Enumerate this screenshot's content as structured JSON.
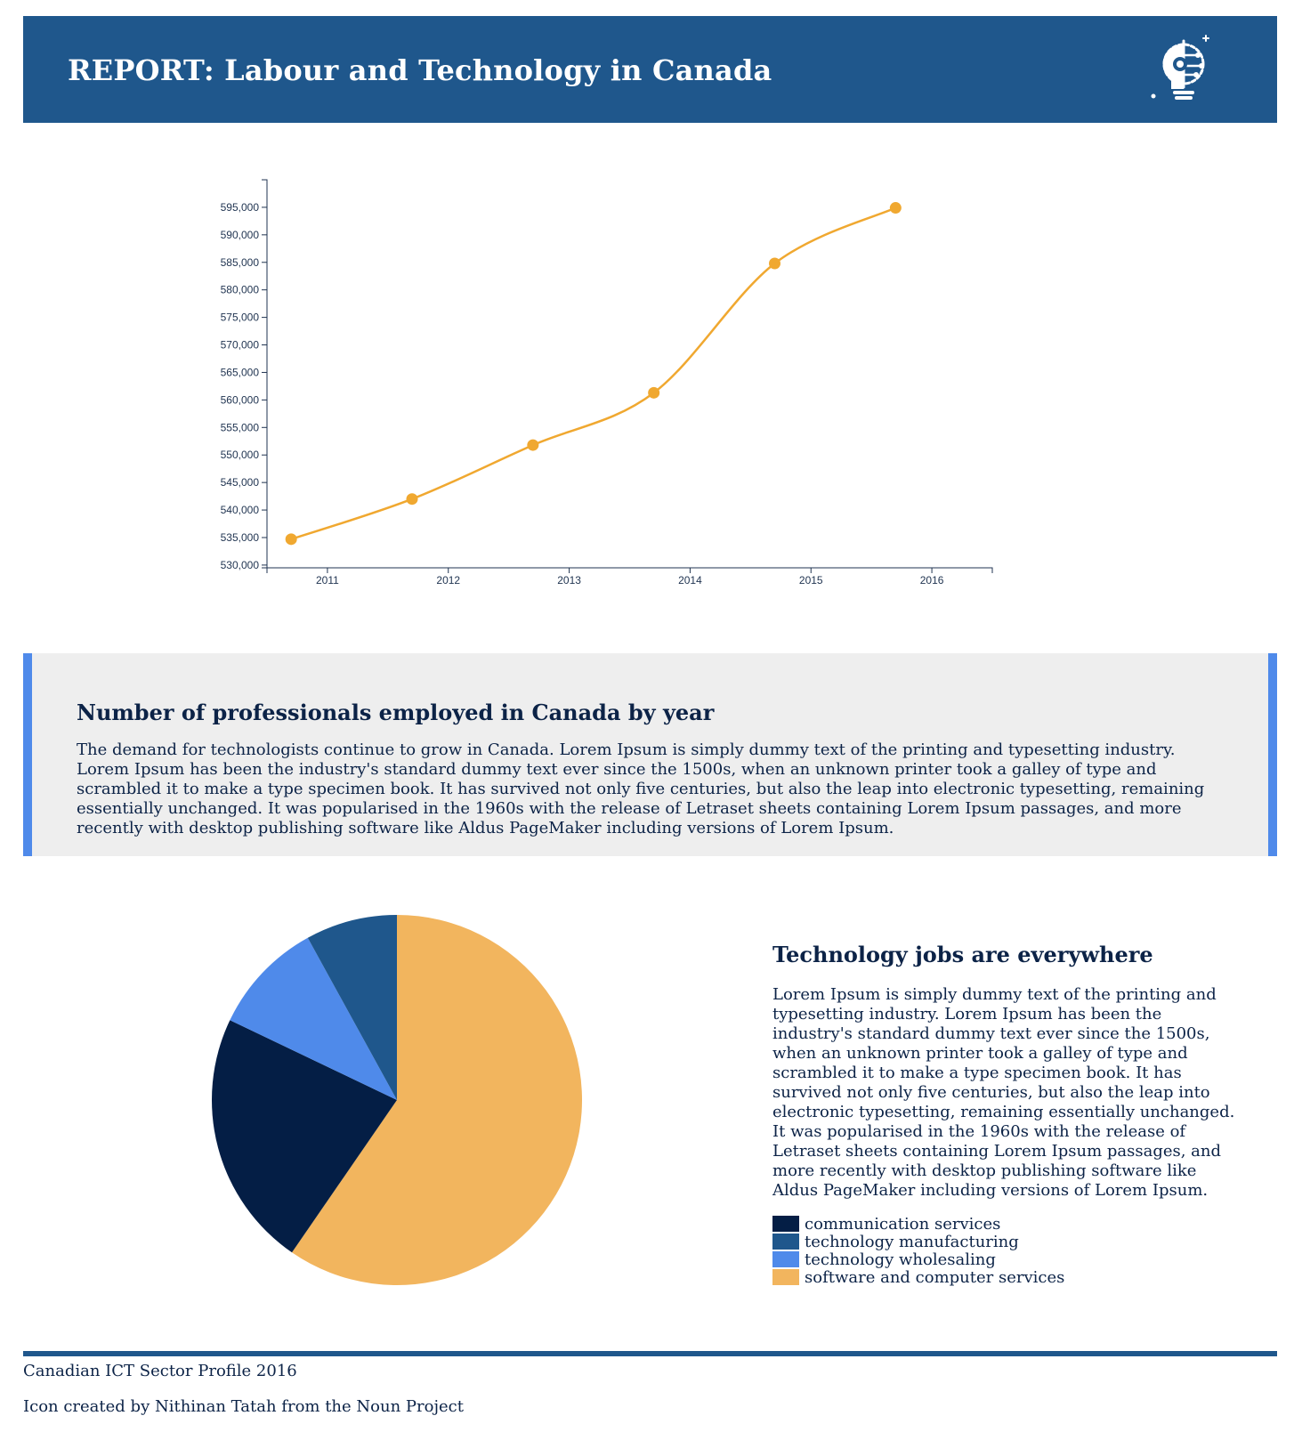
{
  "header": {
    "title": "REPORT: Labour and Technology in Canada",
    "logo_icon": "lightbulb-gear-circuit-icon"
  },
  "colors": {
    "header": "#1f578c",
    "line": "#f0a830",
    "accent": "#4f8aea",
    "text": "#0c2347"
  },
  "chart_data": [
    {
      "type": "line",
      "x": [
        2010.7,
        2011.7,
        2012.7,
        2013.7,
        2014.7,
        2015.7
      ],
      "values": [
        534700,
        542000,
        551800,
        561300,
        584800,
        594900
      ],
      "xticks": [
        "2011",
        "2012",
        "2013",
        "2014",
        "2015",
        "2016"
      ],
      "yticks": [
        "530,000",
        "535,000",
        "540,000",
        "545,000",
        "550,000",
        "555,000",
        "560,000",
        "565,000",
        "570,000",
        "575,000",
        "580,000",
        "585,000",
        "590,000",
        "595,000"
      ],
      "xlim": [
        2010.5,
        2016.5
      ],
      "ylim": [
        529500,
        600000
      ],
      "xlabel": "",
      "ylabel": "",
      "title": "",
      "color": "#f0a830",
      "grid": false
    },
    {
      "type": "pie",
      "labels": [
        "software and computer services",
        "communication services",
        "technology wholesaling",
        "technology manufacturing"
      ],
      "values": [
        59.6,
        22.5,
        9.9,
        8.0
      ],
      "colors": [
        "#f2b55e",
        "#041e45",
        "#4f8aea",
        "#1f578c"
      ],
      "start": "top, clockwise"
    }
  ],
  "info": {
    "title": "Number of professionals employed in Canada by year",
    "text": "The demand for technologists continue to grow in Canada. Lorem Ipsum is simply dummy text of the printing and typesetting industry. Lorem Ipsum has been the industry's standard dummy text ever since the 1500s, when an unknown printer took a galley of type and scrambled it to make a type specimen book. It has survived not only five centuries, but also the leap into electronic typesetting, remaining essentially unchanged. It was popularised in the 1960s with the release of Letraset sheets containing Lorem Ipsum passages, and more recently with desktop publishing software like Aldus PageMaker including versions of Lorem Ipsum."
  },
  "jobs": {
    "title": "Technology jobs are everywhere",
    "text": "Lorem Ipsum is simply dummy text of the printing and typesetting industry. Lorem Ipsum has been the industry's standard dummy text ever since the 1500s, when an unknown printer took a galley of type and scrambled it to make a type specimen book. It has survived not only five centuries, but also the leap into electronic typesetting, remaining essentially unchanged. It was popularised in the 1960s with the release of Letraset sheets containing Lorem Ipsum passages, and more recently with desktop publishing software like Aldus PageMaker including versions of Lorem Ipsum.",
    "legend": [
      {
        "label": "communication services",
        "color": "#041e45"
      },
      {
        "label": "technology manufacturing",
        "color": "#1f578c"
      },
      {
        "label": "technology wholesaling",
        "color": "#4f8aea"
      },
      {
        "label": "software and computer services",
        "color": "#f2b55e"
      }
    ]
  },
  "footer": {
    "source": "Canadian ICT Sector Profile 2016",
    "credit": "Icon created by Nithinan Tatah from the Noun Project"
  }
}
